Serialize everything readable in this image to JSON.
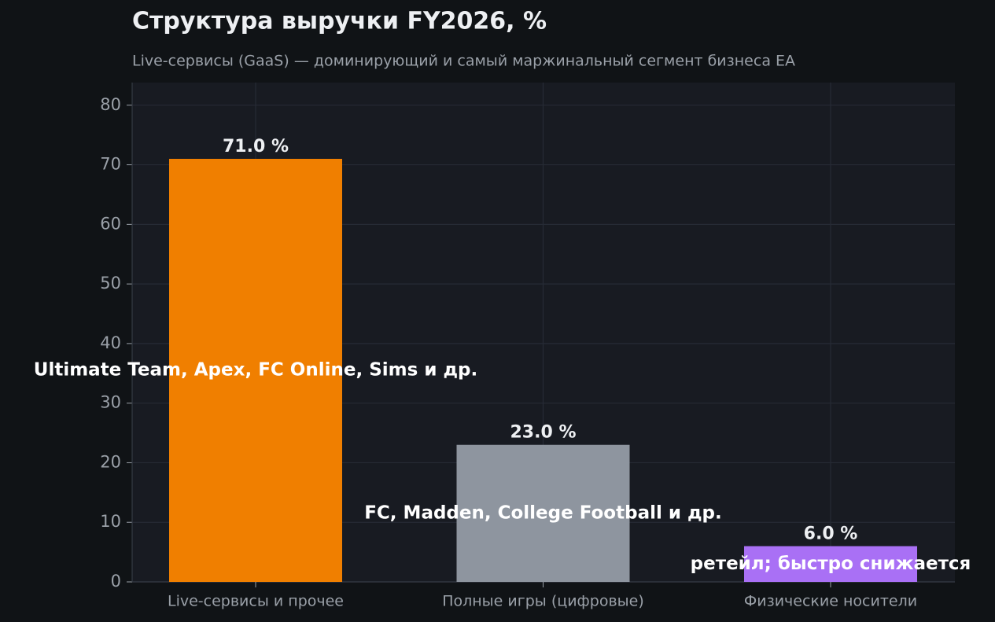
{
  "chart_data": {
    "type": "bar",
    "title": "Структура выручки FY2026, %",
    "subtitle": "Live-сервисы (GaaS) — доминирующий и самый маржинальный сегмент бизнеса EA",
    "categories": [
      "Live-сервисы и прочее",
      "Полные игры (цифровые)",
      "Физические носители"
    ],
    "values": [
      71.0,
      23.0,
      6.0
    ],
    "value_labels": [
      "71.0 %",
      "23.0 %",
      "6.0 %"
    ],
    "annotations": [
      "Ultimate Team, Apex, FC Online, Sims и др.",
      "FC, Madden, College Football и др.",
      "ретейл; быстро снижается"
    ],
    "colors": [
      "#f07f00",
      "#8e959f",
      "#a970f5"
    ],
    "ylim": [
      0,
      83.8
    ],
    "yticks": [
      0,
      10,
      20,
      30,
      40,
      50,
      60,
      70,
      80
    ],
    "grid": true
  }
}
